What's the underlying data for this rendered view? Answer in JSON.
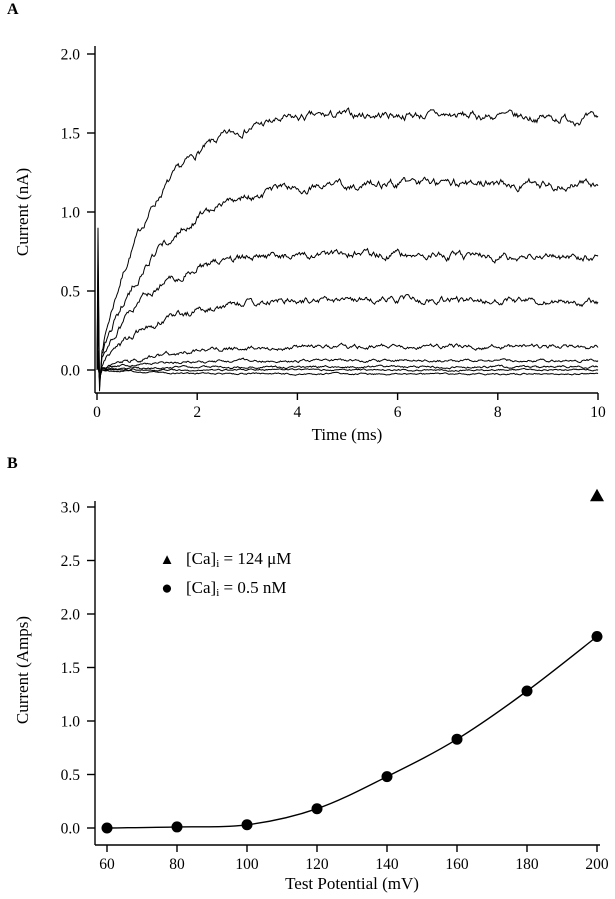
{
  "panels": {
    "a": {
      "label": "A"
    },
    "b": {
      "label": "B"
    }
  },
  "colors": {
    "ink": "#000000",
    "background": "#ffffff"
  },
  "chart_data": [
    {
      "panel": "A",
      "type": "line",
      "title": "",
      "xlabel": "Time (ms)",
      "ylabel": "Current (nA)",
      "xlim": [
        0,
        10
      ],
      "ylim": [
        -0.15,
        2.0
      ],
      "xticks": [
        0,
        2,
        4,
        6,
        8,
        10
      ],
      "xtick_labels": [
        "0",
        "2",
        "4",
        "6",
        "8",
        "10"
      ],
      "yticks": [
        0,
        0.5,
        1,
        1.5,
        2
      ],
      "ytick_labels": [
        "0.0",
        "0.5",
        "1.0",
        "1.5",
        "2.0"
      ],
      "grid": false,
      "traces": [
        {
          "steady_state_nA": 1.68,
          "tau_ms": 1.15,
          "droop": 0.055,
          "noise": 0.03
        },
        {
          "steady_state_nA": 1.22,
          "tau_ms": 1.25,
          "droop": 0.04,
          "noise": 0.03
        },
        {
          "steady_state_nA": 0.78,
          "tau_ms": 1.05,
          "droop": 0.1,
          "noise": 0.028
        },
        {
          "steady_state_nA": 0.47,
          "tau_ms": 1.2,
          "droop": 0.08,
          "noise": 0.025
        },
        {
          "steady_state_nA": 0.16,
          "tau_ms": 1.4,
          "droop": 0.1,
          "noise": 0.016
        },
        {
          "steady_state_nA": 0.06,
          "tau_ms": 1.0,
          "droop": 0,
          "noise": 0.01
        },
        {
          "steady_state_nA": 0.02,
          "tau_ms": 1.0,
          "droop": 0,
          "noise": 0.008
        },
        {
          "steady_state_nA": 0.0,
          "tau_ms": 1.0,
          "droop": 0,
          "noise": 0.006
        },
        {
          "steady_state_nA": -0.025,
          "tau_ms": 1.0,
          "droop": 0,
          "noise": 0.006
        }
      ]
    },
    {
      "panel": "B",
      "type": "scatter",
      "title": "",
      "xlabel": "Test Potential (mV)",
      "ylabel": "Current (Amps)",
      "xlim": [
        60,
        200
      ],
      "ylim": [
        0,
        3.0
      ],
      "xticks": [
        60,
        80,
        100,
        120,
        140,
        160,
        180,
        200
      ],
      "xtick_labels": [
        "60",
        "80",
        "100",
        "120",
        "140",
        "160",
        "180",
        "200"
      ],
      "yticks": [
        0,
        0.5,
        1,
        1.5,
        2,
        2.5,
        3
      ],
      "ytick_labels": [
        "0.0",
        "0.5",
        "1.0",
        "1.5",
        "2.0",
        "2.5",
        "3.0"
      ],
      "grid": false,
      "series": [
        {
          "name": "[Ca]i = 124 μM",
          "marker": "triangle",
          "line": false,
          "x": [
            200
          ],
          "y": [
            3.1
          ]
        },
        {
          "name": "[Ca]i = 0.5 nM",
          "marker": "circle",
          "line": true,
          "x": [
            60,
            80,
            100,
            120,
            140,
            160,
            180,
            200
          ],
          "y": [
            0.0,
            0.01,
            0.03,
            0.18,
            0.48,
            0.83,
            1.28,
            1.79
          ]
        }
      ],
      "legend": {
        "position": "upper-left-inside",
        "items": [
          {
            "marker": "triangle",
            "label_base": "[Ca]",
            "label_sub": "i",
            "label_rest": " = 124 μM"
          },
          {
            "marker": "circle",
            "label_base": "[Ca]",
            "label_sub": "i",
            "label_rest": " = 0.5 nM"
          }
        ]
      }
    }
  ]
}
